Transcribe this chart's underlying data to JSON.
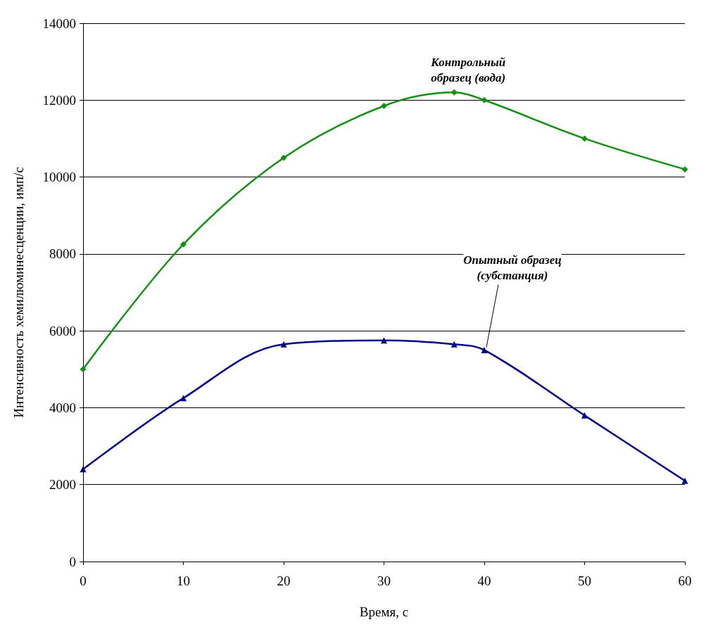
{
  "chart_data": {
    "type": "line",
    "xlabel": "Время, с",
    "ylabel": "Интенсивность хемилюминесценции, имп/с",
    "xlim": [
      0,
      60
    ],
    "xticks": [
      0,
      10,
      20,
      30,
      40,
      50,
      60
    ],
    "ylim": [
      0,
      14000
    ],
    "yticks": [
      0,
      2000,
      4000,
      6000,
      8000,
      10000,
      12000,
      14000
    ],
    "grid": "y",
    "series": [
      {
        "color": "#129212",
        "marker": "diamond",
        "x": [
          0,
          10,
          20,
          30,
          37,
          40,
          50,
          60
        ],
        "values": [
          5000,
          8250,
          10500,
          11850,
          12200,
          12000,
          11000,
          10200
        ]
      },
      {
        "color": "#00008b",
        "marker": "triangle",
        "x": [
          0,
          10,
          20,
          30,
          37,
          40,
          50,
          60
        ],
        "values": [
          2400,
          4250,
          5650,
          5750,
          5650,
          5500,
          3800,
          2100
        ]
      }
    ],
    "annotations": [
      {
        "text": "Контрольный\nобразец (вода)",
        "x": 37,
        "y": 12200
      },
      {
        "text": "Опытный образец\n(субстанция)",
        "x": 40,
        "y": 5500
      }
    ]
  }
}
